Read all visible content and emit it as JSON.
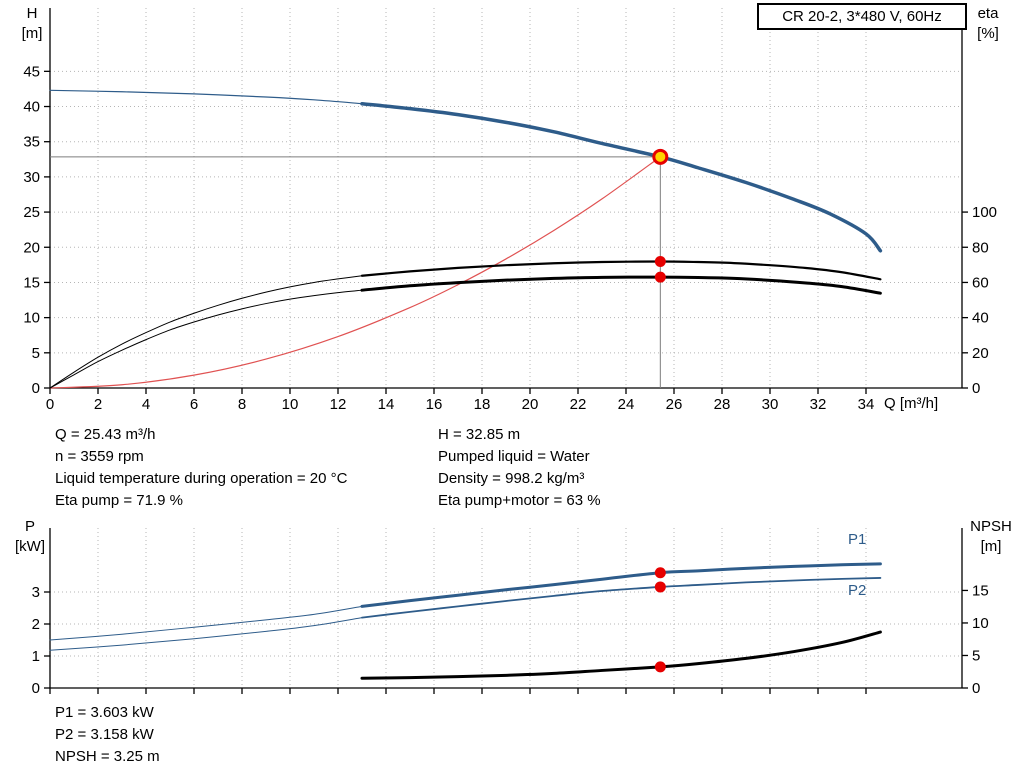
{
  "title_box": "CR 20-2, 3*480 V, 60Hz",
  "x_axis_label": "Q [m³/h]",
  "axis_corner_labels": {
    "h": {
      "line1": "H",
      "line2": "[m]"
    },
    "eta": {
      "line1": "eta",
      "line2": "[%]"
    },
    "p": {
      "line1": "P",
      "line2": "[kW]"
    },
    "npsh": {
      "line1": "NPSH",
      "line2": "[m]"
    }
  },
  "curve_labels": {
    "p1": "P1",
    "p2": "P2"
  },
  "info_panel": {
    "left": [
      "Q = 25.43 m³/h",
      "n = 3559 rpm",
      "Liquid temperature during operation = 20 °C",
      "Eta pump = 71.9 %"
    ],
    "right": [
      "H = 32.85 m",
      "Pumped liquid = Water",
      "Density = 998.2 kg/m³",
      "Eta pump+motor = 63 %"
    ]
  },
  "results_panel": [
    "P1 = 3.603 kW",
    "P2 = 3.158 kW",
    "NPSH = 3.25 m"
  ],
  "colors": {
    "curve_blue": "#2e5c8a",
    "curve_red": "#e05252",
    "curve_black": "#000000",
    "marker": "#e60000",
    "duty_point_fill": "#ffd400",
    "grid": "#b5b5b5",
    "crosshair": "#7d7d7d",
    "axis": "#000000"
  },
  "chart_data": [
    {
      "type": "line",
      "id": "hq-eta-chart",
      "title": "CR 20-2, 3*480 V, 60Hz",
      "x_axis": {
        "label": "Q [m³/h]",
        "min": 0,
        "max": 38,
        "ticks": [
          0,
          2,
          4,
          6,
          8,
          10,
          12,
          14,
          16,
          18,
          20,
          22,
          24,
          26,
          28,
          30,
          32,
          34
        ]
      },
      "y_left": {
        "label": "H [m]",
        "min": 0,
        "max": 54,
        "ticks": [
          0,
          5,
          10,
          15,
          20,
          25,
          30,
          35,
          40,
          45
        ]
      },
      "y_right": {
        "label": "eta [%]",
        "min": 0,
        "max": 216,
        "ticks": [
          0,
          20,
          40,
          60,
          80,
          100
        ]
      },
      "grid": true,
      "series": [
        {
          "name": "head-curve-thin",
          "axis": "left",
          "color": "#2e5c8a",
          "width": 1.2,
          "points": [
            [
              0,
              42.3
            ],
            [
              3,
              42.1
            ],
            [
              6,
              41.8
            ],
            [
              9,
              41.35
            ],
            [
              11,
              40.95
            ],
            [
              13,
              40.4
            ]
          ]
        },
        {
          "name": "head-curve",
          "axis": "left",
          "color": "#2e5c8a",
          "width": 3.5,
          "points": [
            [
              13,
              40.4
            ],
            [
              15,
              39.7
            ],
            [
              17,
              38.85
            ],
            [
              19,
              37.75
            ],
            [
              21,
              36.4
            ],
            [
              23,
              34.75
            ],
            [
              25.43,
              32.85
            ],
            [
              27,
              31.3
            ],
            [
              29,
              29.2
            ],
            [
              31,
              26.8
            ],
            [
              32.5,
              24.75
            ],
            [
              34,
              21.9
            ],
            [
              34.6,
              19.5
            ]
          ]
        },
        {
          "name": "system-curve",
          "axis": "left",
          "color": "#e05252",
          "width": 1.2,
          "points": [
            [
              0,
              0
            ],
            [
              3,
              0.46
            ],
            [
              6,
              1.83
            ],
            [
              9,
              4.11
            ],
            [
              12,
              7.31
            ],
            [
              15,
              11.43
            ],
            [
              17,
              14.68
            ],
            [
              19,
              18.34
            ],
            [
              21,
              22.4
            ],
            [
              23,
              26.87
            ],
            [
              25.43,
              32.85
            ]
          ]
        },
        {
          "name": "eta-pump-thin",
          "axis": "right",
          "color": "#000000",
          "width": 1,
          "points": [
            [
              0,
              0
            ],
            [
              1,
              9
            ],
            [
              2,
              17.5
            ],
            [
              3,
              25
            ],
            [
              4,
              31.5
            ],
            [
              5,
              37.5
            ],
            [
              6,
              42.5
            ],
            [
              7,
              47
            ],
            [
              8,
              51
            ],
            [
              9,
              54.5
            ],
            [
              10,
              57.5
            ],
            [
              11,
              60
            ],
            [
              12,
              62
            ],
            [
              13,
              63.8
            ]
          ]
        },
        {
          "name": "eta-pump",
          "axis": "right",
          "color": "#000000",
          "width": 2.2,
          "points": [
            [
              13,
              63.8
            ],
            [
              15,
              66.3
            ],
            [
              17,
              68.3
            ],
            [
              19,
              69.8
            ],
            [
              21,
              70.9
            ],
            [
              23,
              71.6
            ],
            [
              25.43,
              71.9
            ],
            [
              27,
              71.6
            ],
            [
              28.5,
              71.0
            ],
            [
              30,
              69.8
            ],
            [
              31.5,
              68.2
            ],
            [
              33,
              65.8
            ],
            [
              34.6,
              61.8
            ]
          ]
        },
        {
          "name": "eta-pump-motor-thin",
          "axis": "right",
          "color": "#000000",
          "width": 1,
          "points": [
            [
              0,
              0
            ],
            [
              1,
              7.5
            ],
            [
              2,
              15
            ],
            [
              3,
              21.5
            ],
            [
              4,
              27.5
            ],
            [
              5,
              33
            ],
            [
              6,
              37.5
            ],
            [
              7,
              41.5
            ],
            [
              8,
              45
            ],
            [
              9,
              48
            ],
            [
              10,
              50.5
            ],
            [
              11,
              52.5
            ],
            [
              12,
              54.2
            ],
            [
              13,
              55.6
            ]
          ]
        },
        {
          "name": "eta-pump-motor",
          "axis": "right",
          "color": "#000000",
          "width": 3,
          "points": [
            [
              13,
              55.6
            ],
            [
              15,
              58.1
            ],
            [
              17,
              59.9
            ],
            [
              19,
              61.3
            ],
            [
              21,
              62.3
            ],
            [
              23,
              62.9
            ],
            [
              25.43,
              63.0
            ],
            [
              27,
              62.8
            ],
            [
              28.5,
              62.3
            ],
            [
              30,
              61.2
            ],
            [
              31.5,
              59.7
            ],
            [
              33,
              57.6
            ],
            [
              34.6,
              53.9
            ]
          ]
        }
      ],
      "crosshair": {
        "x": 25.43,
        "y": 32.85,
        "axis": "left"
      },
      "markers": [
        {
          "name": "duty-point",
          "x": 25.43,
          "y": 32.85,
          "axis": "left",
          "style": "duty"
        },
        {
          "name": "eta-pump-point",
          "x": 25.43,
          "y": 71.9,
          "axis": "right",
          "style": "dot"
        },
        {
          "name": "eta-pump-motor-point",
          "x": 25.43,
          "y": 63.0,
          "axis": "right",
          "style": "dot"
        }
      ],
      "duty_point": {
        "Q": 25.43,
        "H": 32.85,
        "eta_pump": 71.9,
        "eta_pump_motor": 63.0,
        "n_rpm": 3559
      }
    },
    {
      "type": "line",
      "id": "power-npsh-chart",
      "x_axis": {
        "label": "",
        "min": 0,
        "max": 38,
        "ticks": [
          0,
          2,
          4,
          6,
          8,
          10,
          12,
          14,
          16,
          18,
          20,
          22,
          24,
          26,
          28,
          30,
          32,
          34
        ],
        "show_labels": false
      },
      "y_left": {
        "label": "P [kW]",
        "min": 0,
        "max": 5,
        "ticks": [
          0,
          1,
          2,
          3
        ]
      },
      "y_right": {
        "label": "NPSH [m]",
        "min": 0,
        "max": 24.6,
        "ticks": [
          0,
          5,
          10,
          15
        ]
      },
      "grid": true,
      "series": [
        {
          "name": "p1-thin",
          "axis": "left",
          "color": "#2e5c8a",
          "width": 1,
          "points": [
            [
              0,
              1.5
            ],
            [
              3,
              1.68
            ],
            [
              6,
              1.9
            ],
            [
              9,
              2.13
            ],
            [
              11,
              2.3
            ],
            [
              13,
              2.55
            ]
          ]
        },
        {
          "name": "p1",
          "axis": "left",
          "color": "#2e5c8a",
          "width": 3,
          "points": [
            [
              13,
              2.55
            ],
            [
              15,
              2.73
            ],
            [
              17,
              2.9
            ],
            [
              19,
              3.07
            ],
            [
              21,
              3.23
            ],
            [
              23,
              3.4
            ],
            [
              25.43,
              3.603
            ],
            [
              27,
              3.66
            ],
            [
              29,
              3.74
            ],
            [
              31,
              3.8
            ],
            [
              33,
              3.85
            ],
            [
              34.6,
              3.88
            ]
          ]
        },
        {
          "name": "p2-thin",
          "axis": "left",
          "color": "#2e5c8a",
          "width": 1,
          "points": [
            [
              0,
              1.18
            ],
            [
              3,
              1.34
            ],
            [
              6,
              1.54
            ],
            [
              9,
              1.77
            ],
            [
              11,
              1.95
            ],
            [
              13,
              2.2
            ]
          ]
        },
        {
          "name": "p2",
          "axis": "left",
          "color": "#2e5c8a",
          "width": 1.8,
          "points": [
            [
              13,
              2.2
            ],
            [
              15,
              2.38
            ],
            [
              17,
              2.55
            ],
            [
              19,
              2.72
            ],
            [
              21,
              2.88
            ],
            [
              23,
              3.03
            ],
            [
              25.43,
              3.158
            ],
            [
              27,
              3.22
            ],
            [
              29,
              3.3
            ],
            [
              31,
              3.36
            ],
            [
              33,
              3.41
            ],
            [
              34.6,
              3.44
            ]
          ]
        },
        {
          "name": "npsh",
          "axis": "right",
          "color": "#000000",
          "width": 3,
          "points": [
            [
              13,
              1.5
            ],
            [
              15,
              1.6
            ],
            [
              17,
              1.75
            ],
            [
              19,
              1.95
            ],
            [
              21,
              2.25
            ],
            [
              23,
              2.7
            ],
            [
              25.43,
              3.25
            ],
            [
              27,
              3.75
            ],
            [
              29,
              4.55
            ],
            [
              31,
              5.6
            ],
            [
              33,
              7.0
            ],
            [
              34.6,
              8.6
            ]
          ]
        }
      ],
      "markers": [
        {
          "name": "p1-point",
          "x": 25.43,
          "y": 3.603,
          "axis": "left",
          "style": "dot"
        },
        {
          "name": "p2-point",
          "x": 25.43,
          "y": 3.158,
          "axis": "left",
          "style": "dot"
        },
        {
          "name": "npsh-point",
          "x": 25.43,
          "y": 3.25,
          "axis": "right",
          "style": "dot"
        }
      ],
      "duty_point": {
        "Q": 25.43,
        "P1_kW": 3.603,
        "P2_kW": 3.158,
        "NPSH_m": 3.25
      }
    }
  ]
}
